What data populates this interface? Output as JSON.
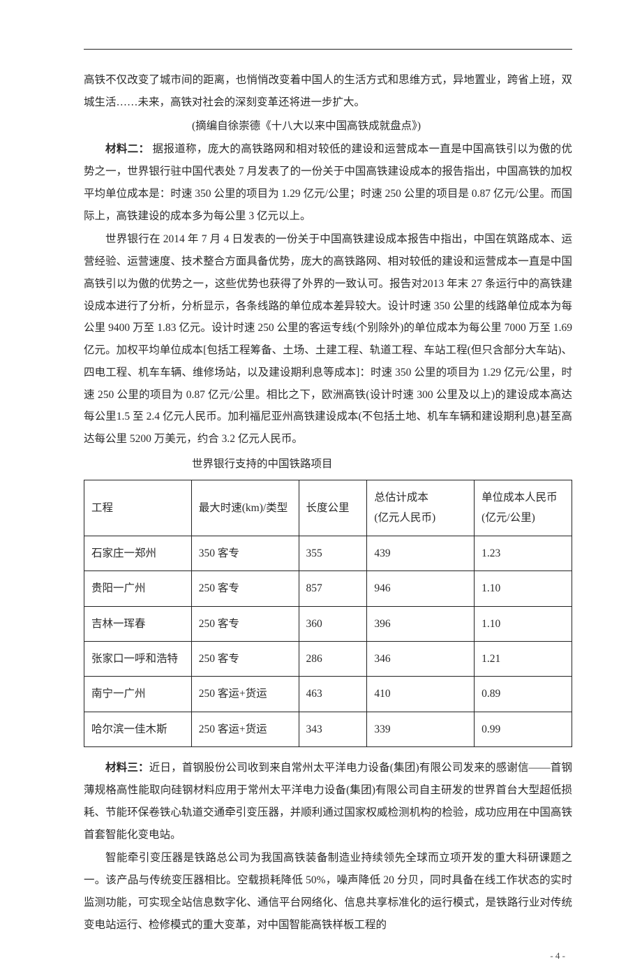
{
  "paragraphs": {
    "p1": "高铁不仅改变了城市间的距离，也悄悄改变着中国人的生活方式和思维方式，异地置业，跨省上班，双城生活……未来，高铁对社会的深刻变革还将进一步扩大。",
    "citation1": "(摘编自徐崇德《十八大以来中国高铁成就盘点》)",
    "label2": "材料二：",
    "p2a": " 据报道称，庞大的高铁路网和相对较低的建设和运营成本一直是中国高铁引以为傲的优势之一，世界银行驻中国代表处 7 月发表了的一份关于中国高铁建设成本的报告指出，中国高铁的加权平均单位成本是：时速 350 公里的项目为 1.29 亿元/公里；时速 250 公里的项目是 0.87 亿元/公里。而国际上，高铁建设的成本多为每公里 3 亿元以上。",
    "p2b": "世界银行在 2014 年 7 月 4 日发表的一份关于中国高铁建设成本报告中指出，中国在筑路成本、运营经验、运营速度、技术整合方面具备优势，庞大的高铁路网、相对较低的建设和运营成本一直是中国高铁引以为傲的优势之一，这些优势也获得了外界的一致认可。报告对2013 年末 27 条运行中的高铁建设成本进行了分析，分析显示，各条线路的单位成本差异较大。设计时速 350 公里的线路单位成本为每公里 9400 万至 1.83 亿元。设计时速 250 公里的客运专线(个别除外)的单位成本为每公里 7000 万至 1.69 亿元。加权平均单位成本[包括工程筹备、土场、土建工程、轨道工程、车站工程(但只含部分大车站)、四电工程、机车车辆、维修场站，以及建设期利息等成本]：时速 350 公里的项目为 1.29 亿元/公里，时速 250 公里的项目为 0.87 亿元/公里。相比之下，欧洲高铁(设计时速 300 公里及以上)的建设成本高达每公里1.5 至 2.4 亿元人民币。加利福尼亚州高铁建设成本(不包括土地、机车车辆和建设期利息)甚至高达每公里 5200 万美元，约合 3.2 亿元人民币。",
    "tableCaption": "世界银行支持的中国铁路项目",
    "label3": "材料三：",
    "p3a": "近日，首钢股份公司收到来自常州太平洋电力设备(集团)有限公司发来的感谢信——首钢薄规格高性能取向硅钢材料应用于常州太平洋电力设备(集团)有限公司自主研发的世界首台大型超低损耗、节能环保卷铁心轨道交通牵引变压器，并顺利通过国家权威检测机构的检验，成功应用在中国高铁首套智能化变电站。",
    "p3b": "智能牵引变压器是铁路总公司为我国高铁装备制造业持续领先全球而立项开发的重大科研课题之一。该产品与传统变压器相比。空载损耗降低 50%，噪声降低 20 分贝，同时具备在线工作状态的实时监测功能，可实现全站信息数字化、通信平台网络化、信息共享标准化的运行模式，是铁路行业对传统变电站运行、检修模式的重大变革，对中国智能高铁样板工程的"
  },
  "table": {
    "headers": {
      "c1": "工程",
      "c2": "最大时速(km)/类型",
      "c3": "长度公里",
      "c4": "总估计成本\n(亿元人民币)",
      "c5": "单位成本人民币\n(亿元/公里)"
    },
    "rows": [
      {
        "c1": "石家庄一郑州",
        "c2": "350 客专",
        "c3": "355",
        "c4": "439",
        "c5": "1.23"
      },
      {
        "c1": "贵阳一广州",
        "c2": "250 客专",
        "c3": "857",
        "c4": "946",
        "c5": "1.10"
      },
      {
        "c1": "吉林一珲春",
        "c2": "250 客专",
        "c3": "360",
        "c4": "396",
        "c5": "1.10"
      },
      {
        "c1": "张家口一呼和浩特",
        "c2": "250 客专",
        "c3": "286",
        "c4": "346",
        "c5": "1.21"
      },
      {
        "c1": "南宁一广州",
        "c2": "250 客运+货运",
        "c3": "463",
        "c4": "410",
        "c5": "0.89"
      },
      {
        "c1": "哈尔滨一佳木斯",
        "c2": "250 客运+货运",
        "c3": "343",
        "c4": "339",
        "c5": "0.99"
      }
    ]
  },
  "pageNumber": "- 4 -"
}
